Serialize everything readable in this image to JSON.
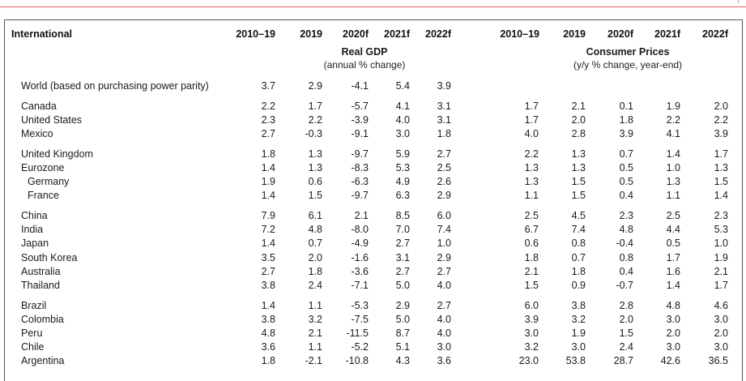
{
  "corner_mark": "/",
  "header": {
    "section_label": "International",
    "gdp_columns": [
      "2010–19",
      "2019",
      "2020f",
      "2021f",
      "2022f"
    ],
    "cpi_columns": [
      "2010–19",
      "2019",
      "2020f",
      "2021f",
      "2022f"
    ]
  },
  "gdp_group": {
    "title": "Real GDP",
    "note": "(annual % change)"
  },
  "cpi_group": {
    "title": "Consumer Prices",
    "note": "(y/y % change, year-end)"
  },
  "rows": [
    {
      "label": "World (based on purchasing power parity)",
      "indent": 1,
      "gdp": [
        "3.7",
        "2.9",
        "-4.1",
        "5.4",
        "3.9"
      ],
      "cpi": [
        "",
        "",
        "",
        "",
        ""
      ]
    },
    {
      "label": "Canada",
      "indent": 1,
      "gdp": [
        "2.2",
        "1.7",
        "-5.7",
        "4.1",
        "3.1"
      ],
      "cpi": [
        "1.7",
        "2.1",
        "0.1",
        "1.9",
        "2.0"
      ]
    },
    {
      "label": "United States",
      "indent": 1,
      "gdp": [
        "2.3",
        "2.2",
        "-3.9",
        "4.0",
        "3.1"
      ],
      "cpi": [
        "1.7",
        "2.0",
        "1.8",
        "2.2",
        "2.2"
      ]
    },
    {
      "label": "Mexico",
      "indent": 1,
      "gdp": [
        "2.7",
        "-0.3",
        "-9.1",
        "3.0",
        "1.8"
      ],
      "cpi": [
        "4.0",
        "2.8",
        "3.9",
        "4.1",
        "3.9"
      ]
    },
    {
      "label": "United Kingdom",
      "indent": 1,
      "gdp": [
        "1.8",
        "1.3",
        "-9.7",
        "5.9",
        "2.7"
      ],
      "cpi": [
        "2.2",
        "1.3",
        "0.7",
        "1.4",
        "1.7"
      ]
    },
    {
      "label": "Eurozone",
      "indent": 1,
      "gdp": [
        "1.4",
        "1.3",
        "-8.3",
        "5.3",
        "2.5"
      ],
      "cpi": [
        "1.3",
        "1.3",
        "0.5",
        "1.0",
        "1.3"
      ]
    },
    {
      "label": "Germany",
      "indent": 2,
      "gdp": [
        "1.9",
        "0.6",
        "-6.3",
        "4.9",
        "2.6"
      ],
      "cpi": [
        "1.3",
        "1.5",
        "0.5",
        "1.3",
        "1.5"
      ]
    },
    {
      "label": "France",
      "indent": 2,
      "gdp": [
        "1.4",
        "1.5",
        "-9.7",
        "6.3",
        "2.9"
      ],
      "cpi": [
        "1.1",
        "1.5",
        "0.4",
        "1.1",
        "1.4"
      ]
    },
    {
      "label": "China",
      "indent": 1,
      "gdp": [
        "7.9",
        "6.1",
        "2.1",
        "8.5",
        "6.0"
      ],
      "cpi": [
        "2.5",
        "4.5",
        "2.3",
        "2.5",
        "2.3"
      ]
    },
    {
      "label": "India",
      "indent": 1,
      "gdp": [
        "7.2",
        "4.8",
        "-8.0",
        "7.0",
        "7.4"
      ],
      "cpi": [
        "6.7",
        "7.4",
        "4.8",
        "4.4",
        "5.3"
      ]
    },
    {
      "label": "Japan",
      "indent": 1,
      "gdp": [
        "1.4",
        "0.7",
        "-4.9",
        "2.7",
        "1.0"
      ],
      "cpi": [
        "0.6",
        "0.8",
        "-0.4",
        "0.5",
        "1.0"
      ]
    },
    {
      "label": "South Korea",
      "indent": 1,
      "gdp": [
        "3.5",
        "2.0",
        "-1.6",
        "3.1",
        "2.9"
      ],
      "cpi": [
        "1.8",
        "0.7",
        "0.8",
        "1.7",
        "1.9"
      ]
    },
    {
      "label": "Australia",
      "indent": 1,
      "gdp": [
        "2.7",
        "1.8",
        "-3.6",
        "2.7",
        "2.7"
      ],
      "cpi": [
        "2.1",
        "1.8",
        "0.4",
        "1.6",
        "2.1"
      ]
    },
    {
      "label": "Thailand",
      "indent": 1,
      "gdp": [
        "3.8",
        "2.4",
        "-7.1",
        "5.0",
        "4.0"
      ],
      "cpi": [
        "1.5",
        "0.9",
        "-0.7",
        "1.4",
        "1.7"
      ]
    },
    {
      "label": "Brazil",
      "indent": 1,
      "gdp": [
        "1.4",
        "1.1",
        "-5.3",
        "2.9",
        "2.7"
      ],
      "cpi": [
        "6.0",
        "3.8",
        "2.8",
        "4.8",
        "4.6"
      ]
    },
    {
      "label": "Colombia",
      "indent": 1,
      "gdp": [
        "3.8",
        "3.2",
        "-7.5",
        "5.0",
        "4.0"
      ],
      "cpi": [
        "3.9",
        "3.2",
        "2.0",
        "3.0",
        "3.0"
      ]
    },
    {
      "label": "Peru",
      "indent": 1,
      "gdp": [
        "4.8",
        "2.1",
        "-11.5",
        "8.7",
        "4.0"
      ],
      "cpi": [
        "3.0",
        "1.9",
        "1.5",
        "2.0",
        "2.0"
      ]
    },
    {
      "label": "Chile",
      "indent": 1,
      "gdp": [
        "3.6",
        "1.1",
        "-5.2",
        "5.1",
        "3.0"
      ],
      "cpi": [
        "3.2",
        "3.0",
        "2.4",
        "3.0",
        "3.0"
      ]
    },
    {
      "label": "Argentina",
      "indent": 1,
      "gdp": [
        "1.8",
        "-2.1",
        "-10.8",
        "4.3",
        "3.6"
      ],
      "cpi": [
        "23.0",
        "53.8",
        "28.7",
        "42.6",
        "36.5"
      ]
    }
  ]
}
